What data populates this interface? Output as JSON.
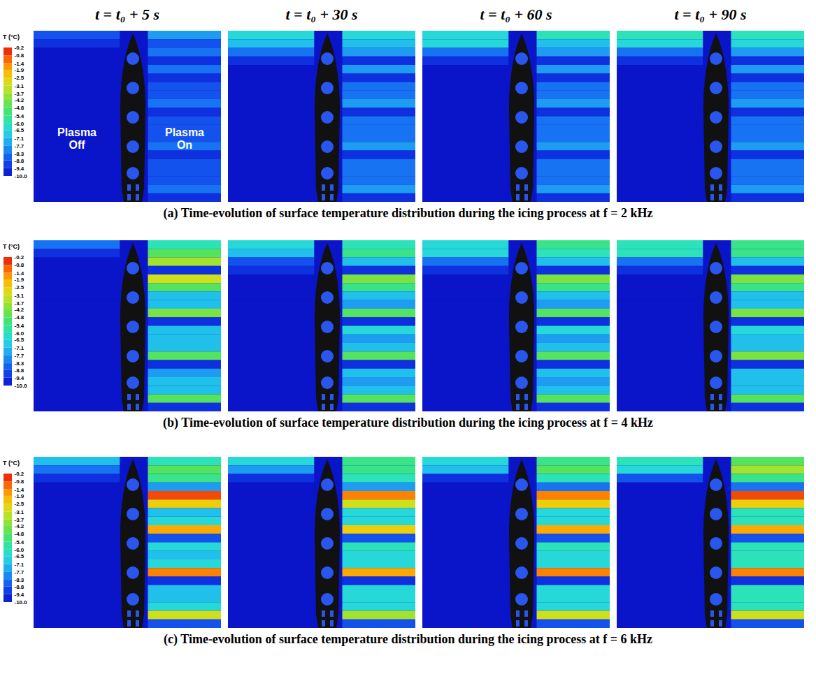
{
  "column_titles": [
    "t = t₀ + 5 s",
    "t = t₀ + 30 s",
    "t = t₀ + 60 s",
    "t = t₀ + 90 s"
  ],
  "chart_data": [
    {
      "type": "heatmap",
      "title": "(a) Time-evolution of surface temperature distribution during the icing process at f = 2 kHz",
      "annotations": [
        "Plasma Off",
        "Plasma On"
      ],
      "colorbar": {
        "title": "T (°C)",
        "range": [
          -10,
          -0.2
        ],
        "ticks": [
          -0.2,
          -0.8,
          -1.4,
          -1.9,
          -2.5,
          -3.1,
          -3.7,
          -4.2,
          -4.8,
          -5.4,
          {
            "value": -6,
            "label": "-6.0"
          },
          -6.5,
          -7.1,
          -7.7,
          -8.3,
          -8.8,
          -9.4,
          {
            "value": -10,
            "label": "-10.0"
          }
        ]
      },
      "panels": [
        {
          "off": [
            -8.8,
            -9.4,
            -10,
            -10,
            -10,
            -10,
            -10,
            -10,
            -10,
            -10,
            -10,
            -10,
            -10,
            -10,
            -10,
            -10,
            -10,
            -10,
            -10,
            -10
          ],
          "on": [
            -7.7,
            -8.8,
            -8.3,
            -9.4,
            -8.3,
            -9.4,
            -8.8,
            -8.8,
            -8.3,
            -9.4,
            -8.8,
            -8.8,
            -8.8,
            -8.3,
            -9.4,
            -8.8,
            -8.8,
            -8.8,
            -8.3,
            -9.4
          ]
        },
        {
          "off": [
            -6.5,
            -7.1,
            -8.3,
            -9.4,
            -10,
            -10,
            -10,
            -10,
            -10,
            -10,
            -10,
            -10,
            -10,
            -10,
            -10,
            -10,
            -10,
            -10,
            -10,
            -10
          ],
          "on": [
            -6.5,
            -7.1,
            -7.7,
            -9.4,
            -7.7,
            -9.4,
            -8.3,
            -8.3,
            -7.7,
            -9.4,
            -8.3,
            -8.3,
            -8.3,
            -7.7,
            -9.4,
            -8.3,
            -8.3,
            -8.3,
            -7.7,
            -9.4
          ]
        },
        {
          "off": [
            -6.5,
            -6.5,
            -8.3,
            -9.4,
            -10,
            -10,
            -10,
            -10,
            -10,
            -10,
            -10,
            -10,
            -10,
            -10,
            -10,
            -10,
            -10,
            -10,
            -10,
            -10
          ],
          "on": [
            -6.0,
            -7.1,
            -7.7,
            -9.4,
            -7.7,
            -9.4,
            -8.3,
            -8.3,
            -7.7,
            -9.4,
            -8.3,
            -8.3,
            -8.3,
            -7.7,
            -9.4,
            -8.3,
            -8.3,
            -8.3,
            -7.7,
            -9.4
          ]
        },
        {
          "off": [
            -6.0,
            -6.5,
            -8.3,
            -9.4,
            -10,
            -10,
            -10,
            -10,
            -10,
            -10,
            -10,
            -10,
            -10,
            -10,
            -10,
            -10,
            -10,
            -10,
            -10,
            -10
          ],
          "on": [
            -6.0,
            -6.5,
            -7.7,
            -9.4,
            -7.7,
            -9.4,
            -8.3,
            -8.3,
            -7.7,
            -9.4,
            -8.3,
            -8.3,
            -8.3,
            -7.7,
            -9.4,
            -8.3,
            -8.3,
            -8.3,
            -7.7,
            -9.4
          ]
        }
      ]
    },
    {
      "type": "heatmap",
      "title": "(b) Time-evolution of surface temperature distribution during the icing process at f = 4 kHz",
      "colorbar": {
        "title": "T (°C)",
        "range": [
          -10,
          -0.2
        ],
        "ticks": [
          -0.2,
          -0.8,
          -1.4,
          -1.9,
          -2.5,
          -3.1,
          -3.7,
          -4.2,
          -4.8,
          -5.4,
          {
            "value": -6,
            "label": "-6.0"
          },
          -6.5,
          -7.1,
          -7.7,
          -8.3,
          -8.8,
          -9.4,
          {
            "value": -10,
            "label": "-10.0"
          }
        ]
      },
      "panels": [
        {
          "off": [
            -8.3,
            -9.4,
            -10,
            -10,
            -10,
            -10,
            -10,
            -10,
            -10,
            -10,
            -10,
            -10,
            -10,
            -10,
            -10,
            -10,
            -10,
            -10,
            -10,
            -10
          ],
          "on": [
            -6.0,
            -4.8,
            -3.7,
            -9.4,
            -3.1,
            -4.8,
            -7.1,
            -7.1,
            -4.2,
            -9.4,
            -7.1,
            -7.1,
            -7.1,
            -4.8,
            -9.4,
            -7.7,
            -7.1,
            -7.1,
            -4.8,
            -9.4
          ]
        },
        {
          "off": [
            -6.5,
            -7.1,
            -8.8,
            -9.4,
            -10,
            -10,
            -10,
            -10,
            -10,
            -10,
            -10,
            -10,
            -10,
            -10,
            -10,
            -10,
            -10,
            -10,
            -10,
            -10
          ],
          "on": [
            -6.0,
            -5.4,
            -7.1,
            -9.4,
            -4.2,
            -5.4,
            -7.1,
            -7.7,
            -4.8,
            -9.4,
            -6.5,
            -7.7,
            -7.1,
            -4.8,
            -9.4,
            -7.1,
            -7.7,
            -7.1,
            -4.8,
            -9.4
          ]
        },
        {
          "off": [
            -6.5,
            -6.5,
            -8.3,
            -9.4,
            -10,
            -10,
            -10,
            -10,
            -10,
            -10,
            -10,
            -10,
            -10,
            -10,
            -10,
            -10,
            -10,
            -10,
            -10,
            -10
          ],
          "on": [
            -5.4,
            -6.0,
            -7.1,
            -9.4,
            -4.2,
            -5.4,
            -7.1,
            -7.7,
            -4.8,
            -9.4,
            -6.5,
            -7.7,
            -7.1,
            -4.8,
            -9.4,
            -7.1,
            -7.7,
            -7.1,
            -4.8,
            -9.4
          ]
        },
        {
          "off": [
            -6.0,
            -6.0,
            -8.3,
            -9.4,
            -10,
            -10,
            -10,
            -10,
            -10,
            -10,
            -10,
            -10,
            -10,
            -10,
            -10,
            -10,
            -10,
            -10,
            -10,
            -10
          ],
          "on": [
            -5.4,
            -5.4,
            -7.1,
            -9.4,
            -4.2,
            -5.4,
            -7.1,
            -7.1,
            -4.2,
            -9.4,
            -6.5,
            -7.1,
            -7.1,
            -4.2,
            -9.4,
            -7.1,
            -7.1,
            -7.1,
            -4.8,
            -9.4
          ]
        }
      ]
    },
    {
      "type": "heatmap",
      "title": "(c) Time-evolution of surface temperature distribution during the icing process at f = 6 kHz",
      "colorbar": {
        "title": "T (°C)",
        "range": [
          -10,
          -0.2
        ],
        "ticks": [
          -0.2,
          -0.8,
          -1.4,
          -1.9,
          -2.5,
          -3.1,
          -3.7,
          -4.2,
          -4.8,
          -5.4,
          {
            "value": -6,
            "label": "-6.0"
          },
          -6.5,
          -7.1,
          -7.7,
          -8.3,
          -8.8,
          -9.4,
          {
            "value": -10,
            "label": "-10.0"
          }
        ]
      },
      "panels": [
        {
          "off": [
            -7.1,
            -8.3,
            -9.4,
            -10,
            -10,
            -10,
            -10,
            -10,
            -10,
            -10,
            -10,
            -10,
            -10,
            -10,
            -10,
            -10,
            -10,
            -10,
            -10,
            -10
          ],
          "on": [
            -6.0,
            -4.8,
            -5.4,
            -7.7,
            -0.8,
            -2.5,
            -7.1,
            -6.5,
            -1.9,
            -8.8,
            -6.5,
            -7.1,
            -6.5,
            -1.4,
            -9.4,
            -7.1,
            -7.1,
            -6.5,
            -3.1,
            -8.8
          ]
        },
        {
          "off": [
            -6.5,
            -7.7,
            -9.4,
            -10,
            -10,
            -10,
            -10,
            -10,
            -10,
            -10,
            -10,
            -10,
            -10,
            -10,
            -10,
            -10,
            -10,
            -10,
            -10,
            -10
          ],
          "on": [
            -5.4,
            -5.4,
            -6.0,
            -7.7,
            -1.4,
            -3.1,
            -6.5,
            -6.5,
            -2.5,
            -8.8,
            -6.0,
            -6.5,
            -6.5,
            -1.9,
            -9.4,
            -6.5,
            -6.5,
            -6.5,
            -3.7,
            -8.8
          ]
        },
        {
          "off": [
            -6.5,
            -7.1,
            -9.4,
            -10,
            -10,
            -10,
            -10,
            -10,
            -10,
            -10,
            -10,
            -10,
            -10,
            -10,
            -10,
            -10,
            -10,
            -10,
            -10,
            -10
          ],
          "on": [
            -5.4,
            -4.8,
            -6.0,
            -8.3,
            -1.4,
            -2.5,
            -6.5,
            -6.5,
            -1.9,
            -8.8,
            -6.0,
            -6.5,
            -6.5,
            -1.4,
            -9.4,
            -6.5,
            -6.5,
            -6.5,
            -3.1,
            -8.8
          ]
        },
        {
          "off": [
            -6.0,
            -6.5,
            -8.8,
            -10,
            -10,
            -10,
            -10,
            -10,
            -10,
            -10,
            -10,
            -10,
            -10,
            -10,
            -10,
            -10,
            -10,
            -10,
            -10,
            -10
          ],
          "on": [
            -4.8,
            -3.7,
            -5.4,
            -8.3,
            -0.8,
            -2.5,
            -6.0,
            -6.0,
            -1.9,
            -8.8,
            -6.0,
            -6.0,
            -6.0,
            -1.4,
            -9.4,
            -6.0,
            -6.0,
            -6.0,
            -3.1,
            -8.8
          ]
        }
      ]
    }
  ]
}
